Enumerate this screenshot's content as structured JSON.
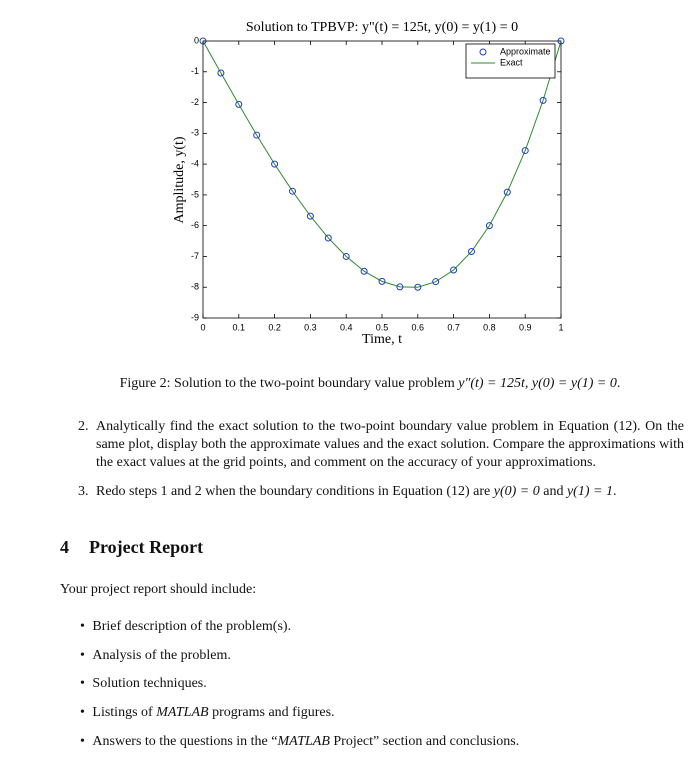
{
  "chart_data": {
    "type": "line",
    "title": "Solution to TPBVP: y\"(t) = 125t, y(0) = y(1) = 0",
    "x_label": "Time, t",
    "y_label": "Amplitude, y(t)",
    "x": [
      0,
      0.05,
      0.1,
      0.15,
      0.2,
      0.25,
      0.3,
      0.35,
      0.4,
      0.45,
      0.5,
      0.55,
      0.6,
      0.65,
      0.7,
      0.75,
      0.8,
      0.85,
      0.9,
      0.95,
      1
    ],
    "series": [
      {
        "name": "Approximate",
        "color": "#1f3fbf",
        "marker": "circle",
        "values": [
          0,
          -1.04,
          -2.06,
          -3.06,
          -4.0,
          -4.88,
          -5.69,
          -6.4,
          -7.0,
          -7.48,
          -7.81,
          -7.99,
          -8.0,
          -7.82,
          -7.44,
          -6.84,
          -6.0,
          -4.91,
          -3.56,
          -1.93,
          0
        ]
      },
      {
        "name": "Exact",
        "color": "#2e8b2e",
        "marker": "none",
        "values": [
          0,
          -1.04,
          -2.06,
          -3.06,
          -4.0,
          -4.88,
          -5.69,
          -6.4,
          -7.0,
          -7.48,
          -7.81,
          -7.99,
          -8.0,
          -7.82,
          -7.44,
          -6.84,
          -6.0,
          -4.91,
          -3.56,
          -1.93,
          0
        ]
      }
    ],
    "xlim": [
      0,
      1
    ],
    "xticks": [
      0,
      0.1,
      0.2,
      0.3,
      0.4,
      0.5,
      0.6,
      0.7,
      0.8,
      0.9,
      1
    ],
    "ylim": [
      -9,
      0
    ],
    "yticks": [
      -9,
      -8,
      -7,
      -6,
      -5,
      -4,
      -3,
      -2,
      -1,
      0
    ],
    "grid": false,
    "legend": "northeast"
  },
  "caption": [
    "Figure 2: Solution to the two-point boundary value problem ",
    "y″(t) = 125t, y(0) = y(1) = 0",
    "."
  ],
  "items": [
    {
      "number": "2.",
      "text": [
        "Analytically find the exact solution to the two-point boundary value problem in Equation (12). On the same plot, display both the approximate values and the exact solution. Compare the approximations with the exact values at the grid points, and comment on the accuracy of your approximations."
      ]
    },
    {
      "number": "3.",
      "text": [
        "Redo steps 1 and 2 when the boundary conditions in Equation (12) are ",
        "y(0) = 0",
        " and ",
        "y(1) = 1",
        "."
      ]
    }
  ],
  "section": {
    "number": "4",
    "title": "Project Report"
  },
  "intro": "Your project report should include:",
  "bullets": [
    [
      "Brief description of the problem(s)."
    ],
    [
      "Analysis of the problem."
    ],
    [
      "Solution techniques."
    ],
    [
      "Listings of ",
      "MATLAB",
      " programs and figures."
    ],
    [
      "Answers to the questions in the “",
      "MATLAB",
      " Project” section and conclusions."
    ]
  ]
}
